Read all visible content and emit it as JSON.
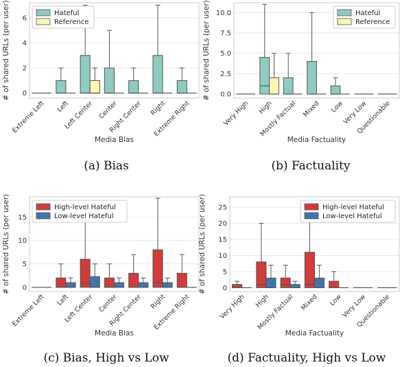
{
  "chart_data": [
    {
      "type": "box",
      "panel": "a",
      "caption": "(a)  Bias",
      "xlabel": "Media Bias",
      "ylabel": "# of shared URLs (per user)",
      "ylim": [
        -0.4,
        7.2
      ],
      "yticks": [
        0,
        2,
        4,
        6
      ],
      "categories": [
        "Extreme Left",
        "Left",
        "Left Center",
        "Center",
        "Right Center",
        "Right",
        "Extreme Right"
      ],
      "legend": "top-left",
      "series": [
        {
          "name": "Hateful",
          "color": "#8fcbc0",
          "boxes": [
            [
              0,
              0,
              0,
              0,
              0
            ],
            [
              0,
              0,
              0,
              1,
              2
            ],
            [
              0,
              0,
              0,
              3,
              7
            ],
            [
              0,
              0,
              0,
              2,
              5
            ],
            [
              0,
              0,
              0,
              1,
              2
            ],
            [
              0,
              0,
              0,
              3,
              7
            ],
            [
              0,
              0,
              0,
              1,
              2
            ]
          ]
        },
        {
          "name": "Reference",
          "color": "#fbf7b5",
          "boxes": [
            [
              0,
              0,
              0,
              0,
              0
            ],
            [
              0,
              0,
              0,
              0,
              0
            ],
            [
              0,
              0,
              0,
              1,
              2
            ],
            [
              0,
              0,
              0,
              0,
              0
            ],
            [
              0,
              0,
              0,
              0,
              0
            ],
            [
              0,
              0,
              0,
              0,
              0
            ],
            [
              0,
              0,
              0,
              0,
              0
            ]
          ]
        }
      ]
    },
    {
      "type": "box",
      "panel": "b",
      "caption": "(b)  Factuality",
      "xlabel": "Media Factuality",
      "ylabel": "# of shared URLs (per user)",
      "ylim": [
        -0.5,
        11.2
      ],
      "yticks": [
        0.0,
        2.5,
        5.0,
        7.5,
        10.0
      ],
      "ytick_labels": [
        "0.0",
        "2.5",
        "5.0",
        "7.5",
        "10.0"
      ],
      "categories": [
        "Very High",
        "High",
        "Mostly Factual",
        "Mixed",
        "Low",
        "Very Low",
        "Questionable"
      ],
      "legend": "top-right",
      "series": [
        {
          "name": "Hateful",
          "color": "#8fcbc0",
          "boxes": [
            [
              0,
              0,
              0,
              0,
              0
            ],
            [
              0,
              0,
              1,
              4.5,
              11
            ],
            [
              0,
              0,
              0,
              2,
              5
            ],
            [
              0,
              0,
              0,
              4,
              10
            ],
            [
              0,
              0,
              0,
              1,
              2
            ],
            [
              0,
              0,
              0,
              0,
              0
            ],
            [
              0,
              0,
              0,
              0,
              0
            ]
          ]
        },
        {
          "name": "Reference",
          "color": "#fbf7b5",
          "boxes": [
            [
              0,
              0,
              0,
              0,
              0
            ],
            [
              0,
              0,
              0,
              2,
              5
            ],
            [
              0,
              0,
              0,
              0,
              0
            ],
            [
              0,
              0,
              0,
              0,
              0
            ],
            [
              0,
              0,
              0,
              0,
              0
            ],
            [
              0,
              0,
              0,
              0,
              0
            ],
            [
              0,
              0,
              0,
              0,
              0
            ]
          ]
        }
      ]
    },
    {
      "type": "box",
      "panel": "c",
      "caption": "(c)  Bias, High vs Low",
      "xlabel": "Media Bias",
      "ylabel": "# of shared URLs (per user)",
      "ylim": [
        -0.9,
        19.3
      ],
      "yticks": [
        0,
        5,
        10,
        15
      ],
      "categories": [
        "Extreme Left",
        "Left",
        "Left Center",
        "Center",
        "Right Center",
        "Right",
        "Extreme Right"
      ],
      "legend": "top-left",
      "series": [
        {
          "name": "High-level Hateful",
          "color": "#d03b3b",
          "boxes": [
            [
              0,
              0,
              0,
              0,
              0
            ],
            [
              0,
              0,
              0,
              2,
              5
            ],
            [
              0,
              0,
              1,
              6,
              15
            ],
            [
              0,
              0,
              0,
              2,
              5
            ],
            [
              0,
              0,
              0,
              3,
              7
            ],
            [
              0,
              0,
              1,
              8,
              19
            ],
            [
              0,
              0,
              0,
              3,
              7
            ]
          ]
        },
        {
          "name": "Low-level Hateful",
          "color": "#3f76aa",
          "boxes": [
            [
              0,
              0,
              0,
              0,
              0
            ],
            [
              0,
              0,
              0,
              1,
              2
            ],
            [
              0,
              0,
              0,
              2.3,
              5
            ],
            [
              0,
              0,
              0,
              1,
              2
            ],
            [
              0,
              0,
              0,
              1,
              2
            ],
            [
              0,
              0,
              0,
              1,
              2
            ],
            [
              0,
              0,
              0,
              0,
              0
            ]
          ]
        }
      ]
    },
    {
      "type": "box",
      "panel": "d",
      "caption": "(d)  Factuality, High vs Low",
      "xlabel": "Media Factuality",
      "ylabel": "# of shared URLs (per user)",
      "ylim": [
        -1.2,
        28.2
      ],
      "yticks": [
        0,
        5,
        10,
        15,
        20,
        25
      ],
      "categories": [
        "Very High",
        "High",
        "Mostly Factual",
        "Mixed",
        "Low",
        "Very Low",
        "Questionable"
      ],
      "legend": "top-right",
      "series": [
        {
          "name": "High-level Hateful",
          "color": "#d03b3b",
          "boxes": [
            [
              0,
              0,
              0,
              1,
              2
            ],
            [
              0,
              0,
              1,
              8,
              20
            ],
            [
              0,
              0,
              1,
              3,
              7
            ],
            [
              0,
              0,
              1,
              11,
              27
            ],
            [
              0,
              0,
              0,
              2,
              5
            ],
            [
              0,
              0,
              0,
              0,
              0
            ],
            [
              0,
              0,
              0,
              0,
              0
            ]
          ]
        },
        {
          "name": "Low-level Hateful",
          "color": "#3f76aa",
          "boxes": [
            [
              0,
              0,
              0,
              0,
              0
            ],
            [
              0,
              0,
              0,
              3,
              7
            ],
            [
              0,
              0,
              0,
              1,
              2
            ],
            [
              0,
              0,
              0,
              3,
              7
            ],
            [
              0,
              0,
              0,
              0,
              0
            ],
            [
              0,
              0,
              0,
              0,
              0
            ],
            [
              0,
              0,
              0,
              0,
              0
            ]
          ]
        }
      ]
    }
  ]
}
